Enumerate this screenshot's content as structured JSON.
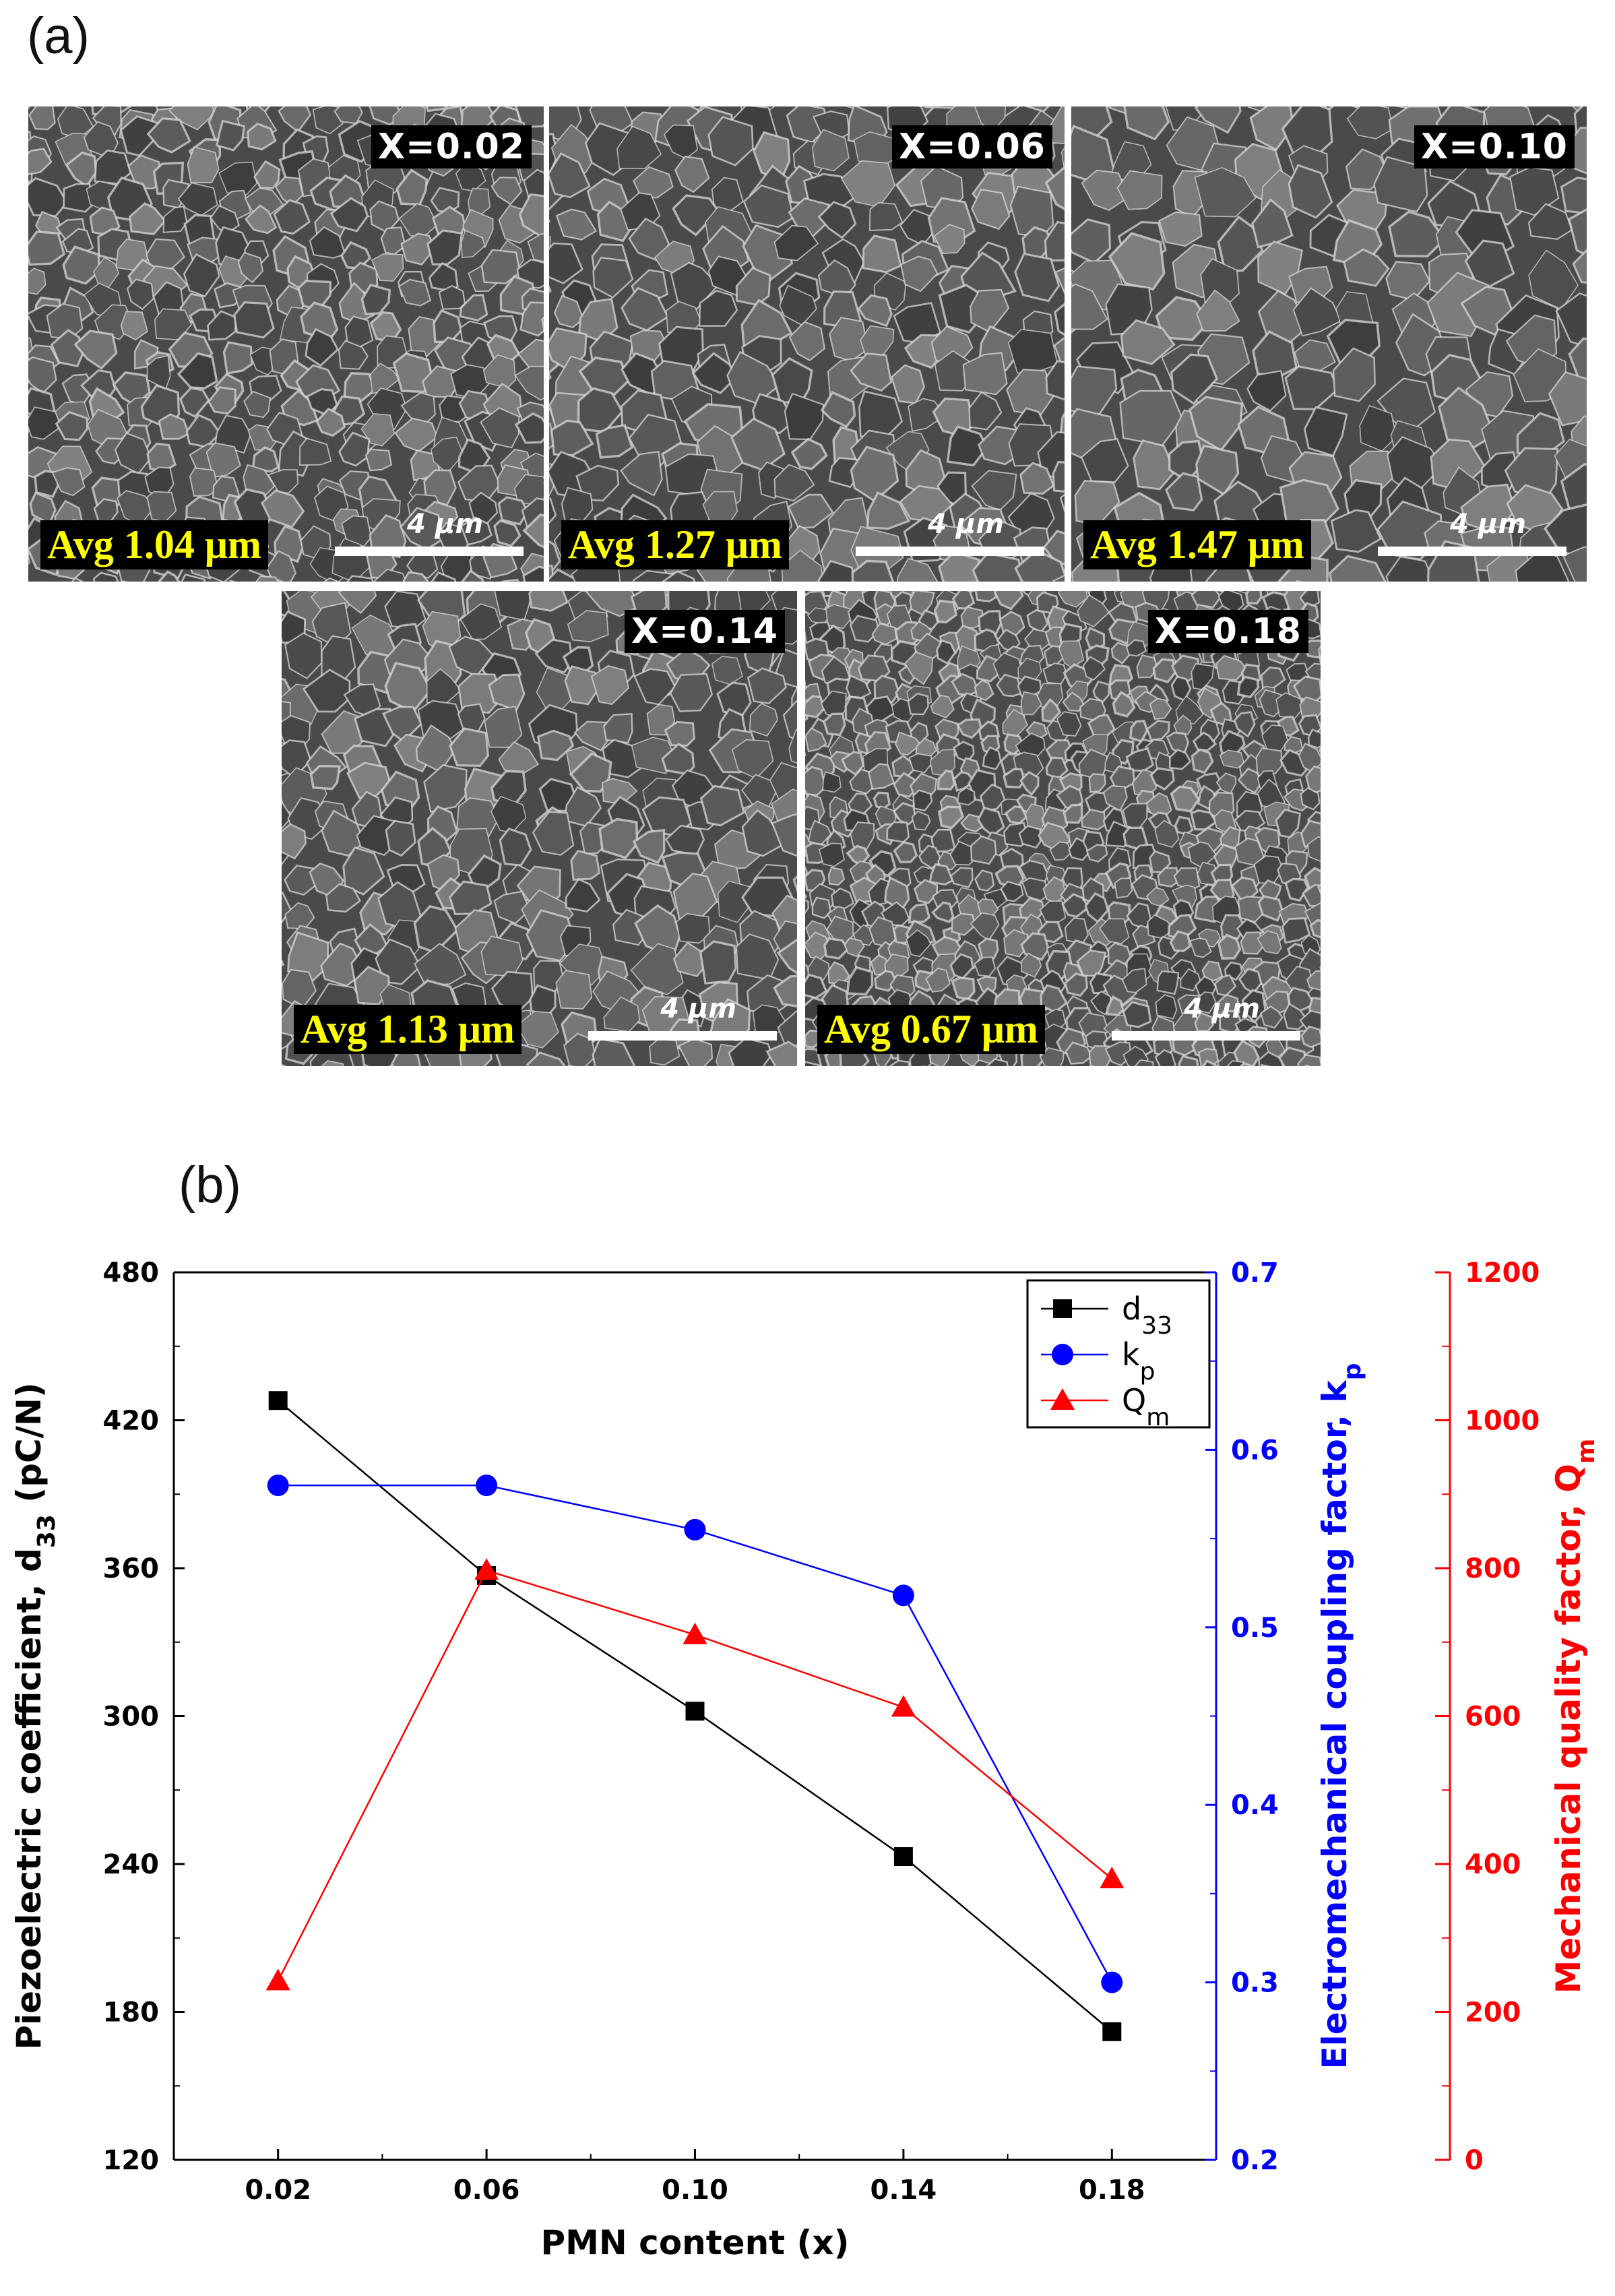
{
  "panel_a": {
    "label": "(a)",
    "micrographs": [
      {
        "composition": "X=0.02",
        "avg": "Avg 1.04 μm",
        "scale": "4 μm"
      },
      {
        "composition": "X=0.06",
        "avg": "Avg 1.27 μm",
        "scale": "4 μm"
      },
      {
        "composition": "X=0.10",
        "avg": "Avg 1.47 μm",
        "scale": "4 μm"
      },
      {
        "composition": "X=0.14",
        "avg": "Avg 1.13 μm",
        "scale": "4 μm"
      },
      {
        "composition": "X=0.18",
        "avg": "Avg 0.67 μm",
        "scale": "4 μm"
      }
    ]
  },
  "panel_b": {
    "label": "(b)"
  },
  "chart_data": {
    "type": "line",
    "categories": [
      "0.02",
      "0.06",
      "0.10",
      "0.14",
      "0.18"
    ],
    "x": [
      0.02,
      0.06,
      0.1,
      0.14,
      0.18
    ],
    "xlabel": "PMN content (x)",
    "xlim": [
      0.0,
      0.2
    ],
    "grid": false,
    "legend_position": "top-right",
    "axes": {
      "left": {
        "label": "Piezoelectric coefficient, d",
        "label_sub": "33",
        "label_suffix": " (pC/N)",
        "ylim": [
          120,
          480
        ],
        "ticks": [
          "120",
          "180",
          "240",
          "300",
          "360",
          "420",
          "480"
        ],
        "color": "#000000"
      },
      "right1": {
        "label": "Electromechanical coupling factor, k",
        "label_sub": "p",
        "ylim": [
          0.2,
          0.7
        ],
        "ticks": [
          "0.2",
          "0.3",
          "0.4",
          "0.5",
          "0.6",
          "0.7"
        ],
        "color": "#0000ff"
      },
      "right2": {
        "label": "Mechanical quality factor, Q",
        "label_sub": "m",
        "ylim": [
          0,
          1200
        ],
        "ticks": [
          "0",
          "200",
          "400",
          "600",
          "800",
          "1000",
          "1200"
        ],
        "color": "#ff0000"
      }
    },
    "series": [
      {
        "name": "d",
        "name_sub": "33",
        "axis": "left",
        "marker": "square",
        "color": "#000000",
        "values": [
          428,
          357,
          302,
          243,
          172
        ]
      },
      {
        "name": "k",
        "name_sub": "p",
        "axis": "right1",
        "marker": "circle",
        "color": "#0000ff",
        "values": [
          0.58,
          0.58,
          0.555,
          0.518,
          0.3
        ]
      },
      {
        "name": "Q",
        "name_sub": "m",
        "axis": "right2",
        "marker": "triangle",
        "color": "#ff0000",
        "values": [
          242,
          797,
          710,
          612,
          380
        ]
      }
    ]
  }
}
